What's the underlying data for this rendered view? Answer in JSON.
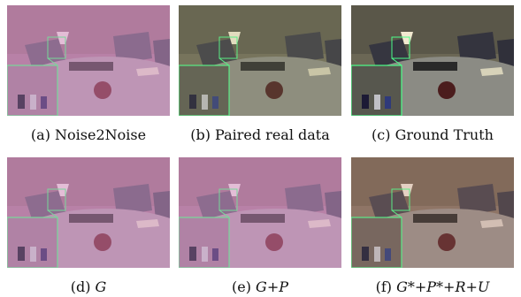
{
  "figure": {
    "panels": [
      {
        "id": "a",
        "label": "(a) Noise2Noise",
        "tint": "#c98fb8",
        "overlay_opacity": 0.55
      },
      {
        "id": "b",
        "label": "(b) Paired real data",
        "tint": "#9a9a6e",
        "overlay_opacity": 0.35
      },
      {
        "id": "c",
        "label": "(c) Ground Truth",
        "tint": "#8f8a6a",
        "overlay_opacity": 0.25
      },
      {
        "id": "d",
        "label": "(d) ",
        "label_math": "G",
        "tint": "#c98fb8",
        "overlay_opacity": 0.55
      },
      {
        "id": "e",
        "label": "(e) ",
        "label_math": "G+P",
        "tint": "#c98fb8",
        "overlay_opacity": 0.55
      },
      {
        "id": "f",
        "label": "(f) ",
        "label_math": "G*+P*+R+U",
        "tint": "#a88f7a",
        "overlay_opacity": 0.35
      }
    ]
  }
}
